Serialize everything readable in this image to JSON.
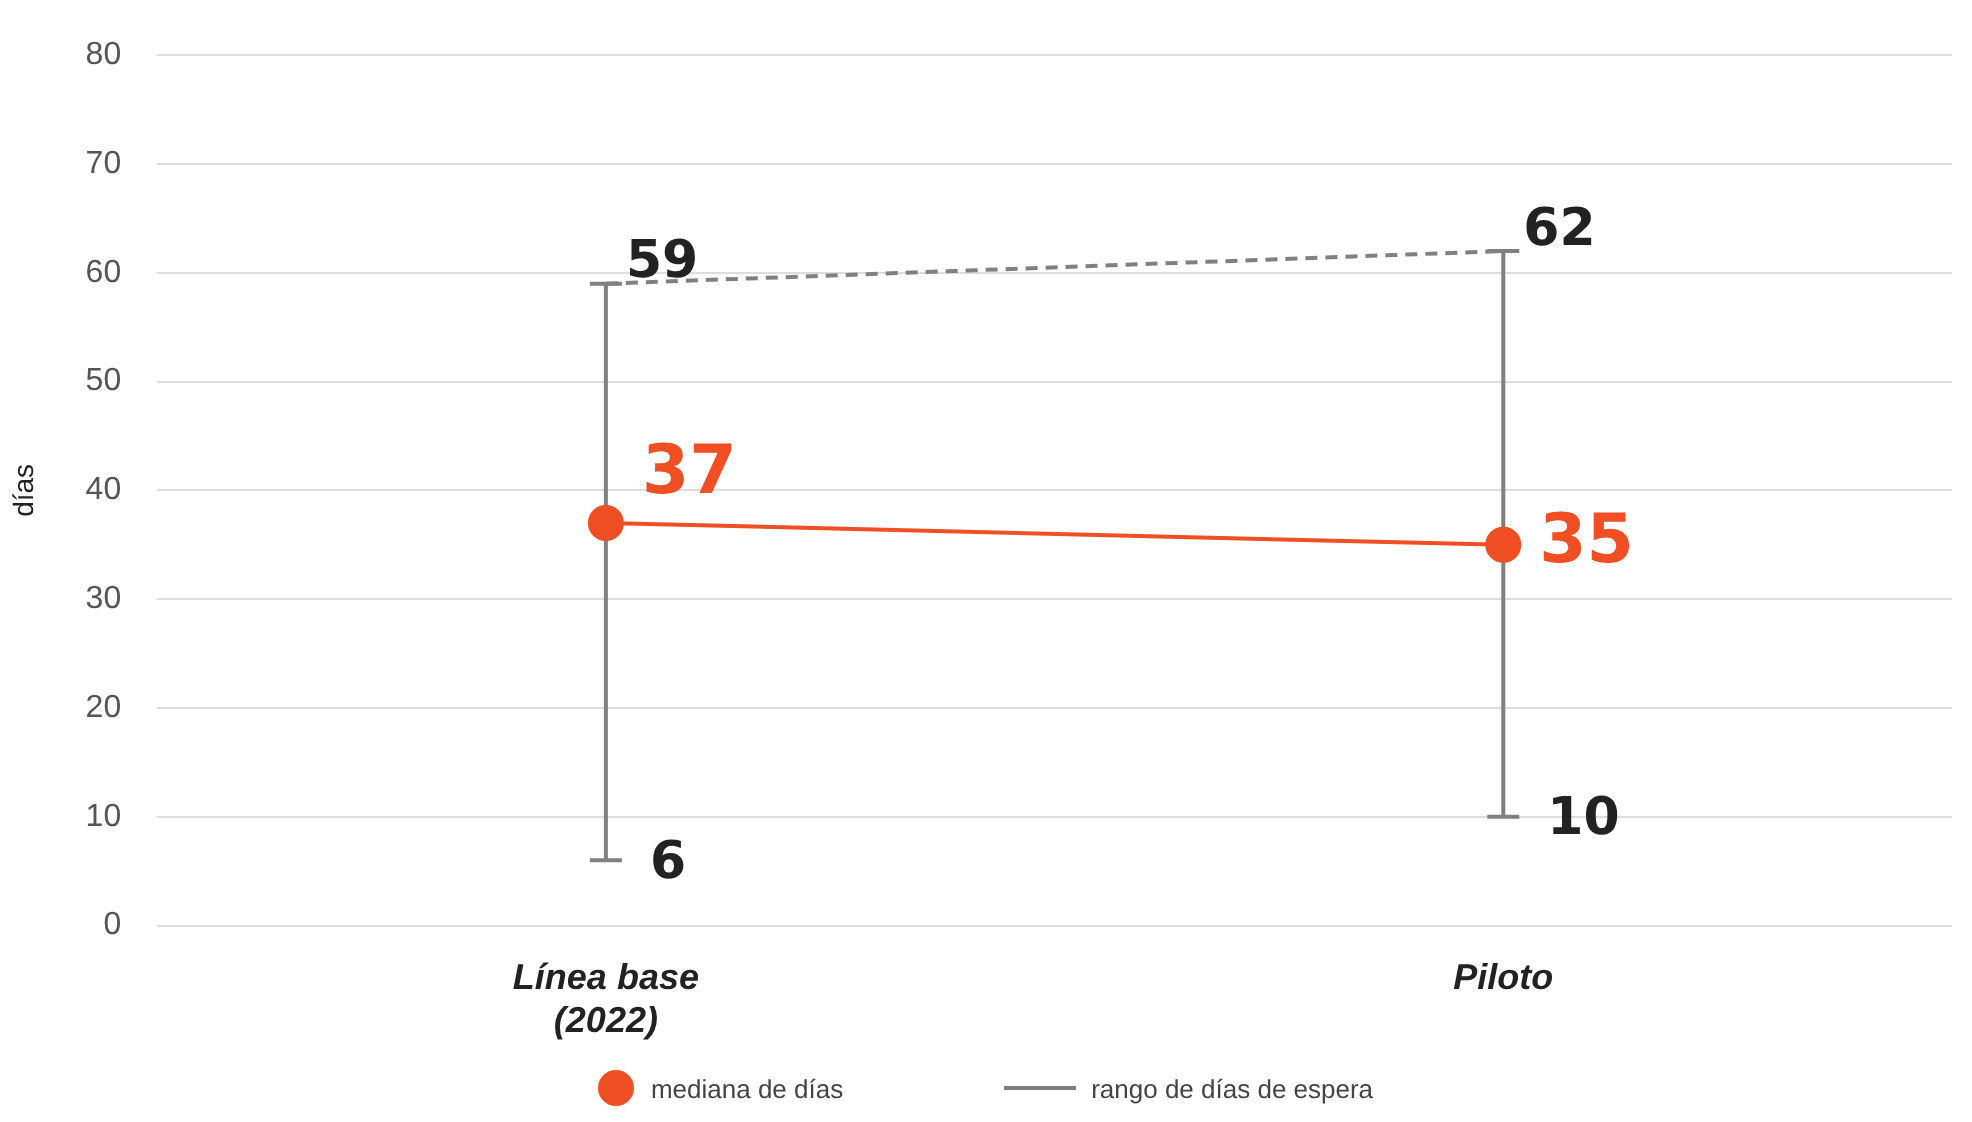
{
  "chart_data": {
    "type": "line",
    "ylabel": "días",
    "categories": [
      "Línea base (2022)",
      "Piloto"
    ],
    "series": [
      {
        "name": "rango de días de espera",
        "color": "#808080",
        "values": [
          59,
          62
        ],
        "line_style": "dashed",
        "marker": "none",
        "value_labels": [
          "59",
          "62"
        ]
      },
      {
        "name": "mediana de días",
        "color": "#f04e23",
        "values": [
          37,
          35
        ],
        "marker": "circle",
        "line_style": "solid",
        "errors": [
          [
            6,
            59
          ],
          [
            10,
            62
          ]
        ],
        "value_labels": [
          "37",
          "35"
        ]
      }
    ],
    "annotations": [
      {
        "text": "6",
        "x": "Línea base (2022)",
        "y": 6
      },
      {
        "text": "10",
        "x": "Piloto",
        "y": 10
      }
    ],
    "ylim": [
      0,
      80
    ],
    "yticks": [
      0,
      10,
      20,
      30,
      40,
      50,
      60,
      70,
      80
    ],
    "grid": "y",
    "legend": "bottom"
  }
}
